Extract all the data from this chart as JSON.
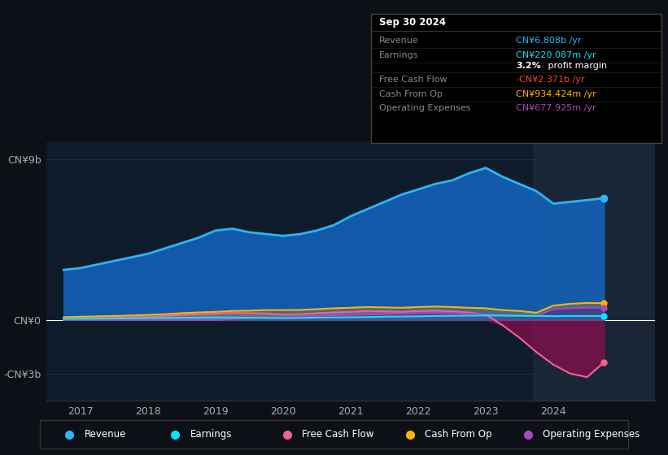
{
  "bg_color": "#0d1117",
  "plot_bg_color": "#0d1b2a",
  "highlight_bg": "#1a2535",
  "grid_color": "#1e2d40",
  "yticks_labels": [
    "CN¥9b",
    "CN¥0",
    "-CN¥3b"
  ],
  "yticks_values": [
    9000000000,
    0,
    -3000000000
  ],
  "xticks": [
    2017,
    2018,
    2019,
    2020,
    2021,
    2022,
    2023,
    2024
  ],
  "ymin": -4500000000,
  "ymax": 10000000000,
  "xmin": 2016.5,
  "xmax": 2025.5,
  "highlight_x_start": 2023.7,
  "highlight_x_end": 2025.5,
  "revenue": {
    "label": "Revenue",
    "color": "#29b6f6",
    "fill_color": "#1565c0",
    "years": [
      2016.75,
      2017.0,
      2017.25,
      2017.5,
      2017.75,
      2018.0,
      2018.25,
      2018.5,
      2018.75,
      2019.0,
      2019.25,
      2019.5,
      2019.75,
      2020.0,
      2020.25,
      2020.5,
      2020.75,
      2021.0,
      2021.25,
      2021.5,
      2021.75,
      2022.0,
      2022.25,
      2022.5,
      2022.75,
      2023.0,
      2023.25,
      2023.5,
      2023.75,
      2024.0,
      2024.25,
      2024.5,
      2024.75
    ],
    "values": [
      2800000000,
      2900000000,
      3100000000,
      3300000000,
      3500000000,
      3700000000,
      4000000000,
      4300000000,
      4600000000,
      5000000000,
      5100000000,
      4900000000,
      4800000000,
      4700000000,
      4800000000,
      5000000000,
      5300000000,
      5800000000,
      6200000000,
      6600000000,
      7000000000,
      7300000000,
      7600000000,
      7800000000,
      8200000000,
      8500000000,
      8000000000,
      7600000000,
      7200000000,
      6500000000,
      6600000000,
      6700000000,
      6808000000
    ]
  },
  "earnings": {
    "label": "Earnings",
    "color": "#00e5ff",
    "fill_color": "#00e5ff",
    "years": [
      2016.75,
      2017.0,
      2017.25,
      2017.5,
      2017.75,
      2018.0,
      2018.25,
      2018.5,
      2018.75,
      2019.0,
      2019.25,
      2019.5,
      2019.75,
      2020.0,
      2020.25,
      2020.5,
      2020.75,
      2021.0,
      2021.25,
      2021.5,
      2021.75,
      2022.0,
      2022.25,
      2022.5,
      2022.75,
      2023.0,
      2023.25,
      2023.5,
      2023.75,
      2024.0,
      2024.25,
      2024.5,
      2024.75
    ],
    "values": [
      50000000,
      60000000,
      70000000,
      80000000,
      90000000,
      100000000,
      110000000,
      120000000,
      130000000,
      140000000,
      130000000,
      120000000,
      110000000,
      100000000,
      110000000,
      130000000,
      140000000,
      150000000,
      160000000,
      180000000,
      190000000,
      200000000,
      220000000,
      230000000,
      240000000,
      250000000,
      240000000,
      230000000,
      220000000,
      210000000,
      220000000,
      220000000,
      220087000
    ]
  },
  "free_cash_flow": {
    "label": "Free Cash Flow",
    "color": "#f06292",
    "fill_color_neg": "#880e4f",
    "fill_color_pos": "#f06292",
    "years": [
      2016.75,
      2017.0,
      2017.25,
      2017.5,
      2017.75,
      2018.0,
      2018.25,
      2018.5,
      2018.75,
      2019.0,
      2019.25,
      2019.5,
      2019.75,
      2020.0,
      2020.25,
      2020.5,
      2020.75,
      2021.0,
      2021.25,
      2021.5,
      2021.75,
      2022.0,
      2022.25,
      2022.5,
      2022.75,
      2023.0,
      2023.25,
      2023.5,
      2023.75,
      2024.0,
      2024.25,
      2024.5,
      2024.75
    ],
    "values": [
      50000000,
      80000000,
      100000000,
      120000000,
      150000000,
      180000000,
      220000000,
      280000000,
      320000000,
      350000000,
      400000000,
      380000000,
      360000000,
      300000000,
      320000000,
      380000000,
      420000000,
      450000000,
      500000000,
      480000000,
      450000000,
      500000000,
      520000000,
      480000000,
      420000000,
      300000000,
      -300000000,
      -1000000000,
      -1800000000,
      -2500000000,
      -3000000000,
      -3200000000,
      -2371000000
    ]
  },
  "cash_from_op": {
    "label": "Cash From Op",
    "color": "#ffb300",
    "fill_color": "#ffb300",
    "years": [
      2016.75,
      2017.0,
      2017.25,
      2017.5,
      2017.75,
      2018.0,
      2018.25,
      2018.5,
      2018.75,
      2019.0,
      2019.25,
      2019.5,
      2019.75,
      2020.0,
      2020.25,
      2020.5,
      2020.75,
      2021.0,
      2021.25,
      2021.5,
      2021.75,
      2022.0,
      2022.25,
      2022.5,
      2022.75,
      2023.0,
      2023.25,
      2023.5,
      2023.75,
      2024.0,
      2024.25,
      2024.5,
      2024.75
    ],
    "values": [
      150000000,
      180000000,
      200000000,
      220000000,
      250000000,
      280000000,
      320000000,
      380000000,
      420000000,
      450000000,
      500000000,
      520000000,
      550000000,
      550000000,
      560000000,
      600000000,
      650000000,
      680000000,
      720000000,
      700000000,
      680000000,
      720000000,
      750000000,
      720000000,
      680000000,
      650000000,
      550000000,
      500000000,
      400000000,
      800000000,
      900000000,
      950000000,
      934424000
    ]
  },
  "op_expenses": {
    "label": "Operating Expenses",
    "color": "#ab47bc",
    "fill_color": "#4a148c",
    "years": [
      2016.75,
      2017.0,
      2017.25,
      2017.5,
      2017.75,
      2018.0,
      2018.25,
      2018.5,
      2018.75,
      2019.0,
      2019.25,
      2019.5,
      2019.75,
      2020.0,
      2020.25,
      2020.5,
      2020.75,
      2021.0,
      2021.25,
      2021.5,
      2021.75,
      2022.0,
      2022.25,
      2022.5,
      2022.75,
      2023.0,
      2023.25,
      2023.5,
      2023.75,
      2024.0,
      2024.25,
      2024.5,
      2024.75
    ],
    "values": [
      0,
      0,
      0,
      0,
      0,
      0,
      0,
      0,
      0,
      0,
      50000000,
      100000000,
      120000000,
      150000000,
      180000000,
      220000000,
      250000000,
      280000000,
      300000000,
      320000000,
      350000000,
      380000000,
      400000000,
      380000000,
      350000000,
      320000000,
      280000000,
      250000000,
      220000000,
      600000000,
      650000000,
      680000000,
      677925000
    ]
  },
  "tooltip": {
    "title": "Sep 30 2024",
    "rows": [
      {
        "label": "Revenue",
        "value": "CN¥6.808b /yr",
        "value_color": "#29b6f6"
      },
      {
        "label": "Earnings",
        "value": "CN¥220.087m /yr",
        "value_color": "#00e5ff"
      },
      {
        "label": "",
        "value": "3.2% profit margin",
        "value_color": "#ffffff"
      },
      {
        "label": "Free Cash Flow",
        "value": "-CN¥2.371b /yr",
        "value_color": "#f44336"
      },
      {
        "label": "Cash From Op",
        "value": "CN¥934.424m /yr",
        "value_color": "#ffb300"
      },
      {
        "label": "Operating Expenses",
        "value": "CN¥677.925m /yr",
        "value_color": "#ab47bc"
      }
    ]
  },
  "legend": [
    {
      "label": "Revenue",
      "color": "#29b6f6"
    },
    {
      "label": "Earnings",
      "color": "#00e5ff"
    },
    {
      "label": "Free Cash Flow",
      "color": "#f06292"
    },
    {
      "label": "Cash From Op",
      "color": "#ffb300"
    },
    {
      "label": "Operating Expenses",
      "color": "#ab47bc"
    }
  ]
}
